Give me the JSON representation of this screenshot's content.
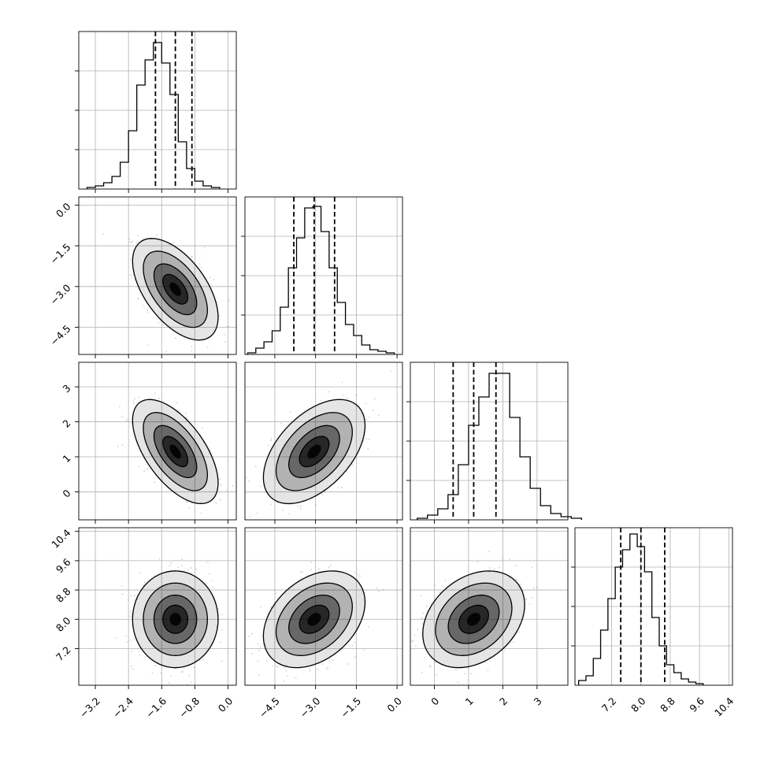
{
  "chart_data": {
    "type": "corner",
    "parameters": 4,
    "quantile_lines_style": "dashed",
    "grid": true,
    "colors": {
      "line": "#000000",
      "grid": "#b0b0b0",
      "scatter": "#9a9a9a",
      "fill_dark": "#000000"
    },
    "histograms": [
      {
        "param": 0,
        "xlim": [
          -3.6,
          0.2
        ],
        "bins_from": -3.4,
        "bin_width": 0.2,
        "counts": [
          1,
          2,
          4,
          8,
          17,
          37,
          66,
          82,
          93,
          80,
          60,
          30,
          13,
          5,
          2,
          1
        ],
        "ymax": 100,
        "quantiles": [
          -1.75,
          -1.27,
          -0.87
        ]
      },
      {
        "param": 1,
        "xlim": [
          -5.6,
          0.2
        ],
        "bins_from": -5.5,
        "bin_width": 0.3,
        "counts": [
          1,
          4,
          8,
          15,
          30,
          55,
          74,
          93,
          94,
          78,
          55,
          33,
          19,
          12,
          6,
          3,
          2,
          1
        ],
        "ymax": 100,
        "quantiles": [
          -3.8,
          -3.05,
          -2.3
        ]
      },
      {
        "param": 2,
        "xlim": [
          -0.7,
          3.9
        ],
        "bins_from": -0.5,
        "bin_width": 0.3,
        "counts": [
          1,
          3,
          7,
          16,
          35,
          60,
          78,
          93,
          93,
          65,
          40,
          20,
          9,
          4,
          2,
          1
        ],
        "ymax": 100,
        "quantiles": [
          0.55,
          1.15,
          1.8
        ]
      },
      {
        "param": 3,
        "xlim": [
          6.2,
          10.5
        ],
        "bins_from": 6.3,
        "bin_width": 0.2,
        "counts": [
          3,
          6,
          17,
          35,
          55,
          75,
          86,
          96,
          88,
          72,
          43,
          25,
          13,
          8,
          4,
          2,
          1
        ],
        "ymax": 100,
        "quantiles": [
          7.45,
          8.0,
          8.65
        ]
      }
    ],
    "pairs": [
      {
        "x": 0,
        "y": 1,
        "xlim": [
          -3.6,
          0.2
        ],
        "ylim": [
          -5.5,
          0.3
        ],
        "center": [
          -1.27,
          -3.1
        ],
        "sigma": [
          0.43,
          0.78
        ],
        "rho": -0.55
      },
      {
        "x": 0,
        "y": 2,
        "xlim": [
          -3.6,
          0.2
        ],
        "ylim": [
          -0.8,
          3.7
        ],
        "center": [
          -1.27,
          1.15
        ],
        "sigma": [
          0.43,
          0.62
        ],
        "rho": -0.6
      },
      {
        "x": 1,
        "y": 2,
        "xlim": [
          -5.6,
          0.2
        ],
        "ylim": [
          -0.8,
          3.7
        ],
        "center": [
          -3.05,
          1.15
        ],
        "sigma": [
          0.78,
          0.62
        ],
        "rho": 0.5
      },
      {
        "x": 0,
        "y": 3,
        "xlim": [
          -3.6,
          0.2
        ],
        "ylim": [
          6.2,
          10.5
        ],
        "center": [
          -1.27,
          8.0
        ],
        "sigma": [
          0.43,
          0.55
        ],
        "rho": 0.0
      },
      {
        "x": 1,
        "y": 3,
        "xlim": [
          -5.6,
          0.2
        ],
        "ylim": [
          6.2,
          10.5
        ],
        "center": [
          -3.05,
          8.0
        ],
        "sigma": [
          0.78,
          0.55
        ],
        "rho": 0.35
      },
      {
        "x": 2,
        "y": 3,
        "xlim": [
          -0.7,
          3.9
        ],
        "ylim": [
          6.2,
          10.5
        ],
        "center": [
          1.15,
          8.0
        ],
        "sigma": [
          0.62,
          0.55
        ],
        "rho": 0.3
      }
    ],
    "x_tick_labels": [
      {
        "param": 0,
        "values": [
          -3.2,
          -2.4,
          -1.6,
          -0.8,
          0.0
        ],
        "labels": [
          "−3.2",
          "−2.4",
          "−1.6",
          "−0.8",
          "0.0"
        ]
      },
      {
        "param": 1,
        "values": [
          -4.5,
          -3.0,
          -1.5,
          0.0
        ],
        "labels": [
          "−4.5",
          "−3.0",
          "−1.5",
          "0.0"
        ]
      },
      {
        "param": 2,
        "values": [
          0,
          1,
          2,
          3
        ],
        "labels": [
          "0",
          "1",
          "2",
          "3"
        ]
      },
      {
        "param": 3,
        "values": [
          7.2,
          8.0,
          8.8,
          9.6,
          10.4
        ],
        "labels": [
          "7.2",
          "8.0",
          "8.8",
          "9.6",
          "10.4"
        ]
      }
    ],
    "y_tick_labels": [
      {
        "param": 1,
        "values": [
          0.0,
          -1.5,
          -3.0,
          -4.5
        ],
        "labels": [
          "0.0",
          "−1.5",
          "−3.0",
          "−4.5"
        ]
      },
      {
        "param": 2,
        "values": [
          3,
          2,
          1,
          0
        ],
        "labels": [
          "3",
          "2",
          "1",
          "0"
        ]
      },
      {
        "param": 3,
        "values": [
          10.4,
          9.6,
          8.8,
          8.0,
          7.2
        ],
        "labels": [
          "10.4",
          "9.6",
          "8.8",
          "8.0",
          "7.2"
        ]
      }
    ]
  }
}
